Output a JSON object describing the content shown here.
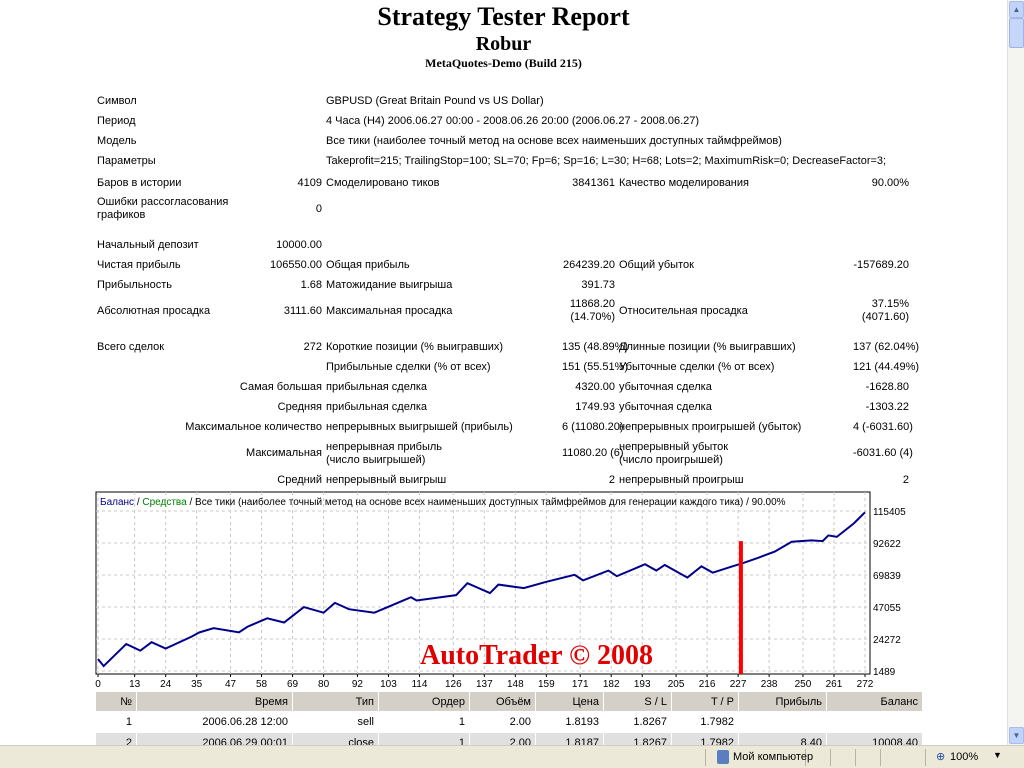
{
  "header": {
    "title": "Strategy Tester Report",
    "expert": "Robur",
    "server": "MetaQuotes-Demo (Build 215)"
  },
  "info": {
    "symbol_label": "Символ",
    "symbol": "GBPUSD (Great Britain Pound vs US Dollar)",
    "period_label": "Период",
    "period": "4 Часа (H4) 2006.06.27 00:00 - 2008.06.26 20:00 (2006.06.27 - 2008.06.27)",
    "model_label": "Модель",
    "model": "Все тики (наиболее точный метод на основе всех наименьших доступных таймфреймов)",
    "params_label": "Параметры",
    "params": "Takeprofit=215; TrailingStop=100; SL=70; Fp=6; Sp=16; L=30; H=68; Lots=2; MaximumRisk=0; DecreaseFactor=3;",
    "bars_label": "Баров в истории",
    "bars": "4109",
    "ticks_label": "Смоделировано тиков",
    "ticks": "3841361",
    "quality_label": "Качество моделирования",
    "quality": "90.00%",
    "errors_label": "Ошибки рассогласования графиков",
    "errors": "0"
  },
  "stats": {
    "deposit_label": "Начальный депозит",
    "deposit": "10000.00",
    "net_label": "Чистая прибыль",
    "net": "106550.00",
    "gross_profit_label": "Общая прибыль",
    "gross_profit": "264239.20",
    "gross_loss_label": "Общий убыток",
    "gross_loss": "-157689.20",
    "pf_label": "Прибыльность",
    "pf": "1.68",
    "expected_label": "Матожидание выигрыша",
    "expected": "391.73",
    "abs_dd_label": "Абсолютная просадка",
    "abs_dd": "3111.60",
    "max_dd_label": "Максимальная просадка",
    "max_dd": "11868.20",
    "max_dd_pct": "(14.70%)",
    "rel_dd_label": "Относительная просадка",
    "rel_dd": "37.15%",
    "rel_dd_val": "(4071.60)",
    "total_label": "Всего сделок",
    "total": "272",
    "short_label": "Короткие позиции (% выигравших)",
    "short": "135 (48.89%)",
    "long_label": "Длинные позиции (% выигравших)",
    "long": "137 (62.04%)",
    "win_label": "Прибыльные сделки (% от всех)",
    "win": "151 (55.51%)",
    "loss_label": "Убыточные сделки (% от всех)",
    "loss": "121 (44.49%)",
    "largest_label": "Самая большая",
    "largest_win_label": "прибыльная сделка",
    "largest_win": "4320.00",
    "largest_loss_label": "убыточная сделка",
    "largest_loss": "-1628.80",
    "avg_label": "Средняя",
    "avg_win_label": "прибыльная сделка",
    "avg_win": "1749.93",
    "avg_loss_label": "убыточная сделка",
    "avg_loss": "-1303.22",
    "maxcount_label": "Максимальное количество",
    "maxcons_win_label": "непрерывных выигрышей (прибыль)",
    "maxcons_win": "6 (11080.20)",
    "maxcons_loss_label": "непрерывных проигрышей (убыток)",
    "maxcons_loss": "4 (-6031.60)",
    "max_label": "Максимальная",
    "maxprofit_label": "непрерывная прибыль (число выигрышей)",
    "maxprofit": "11080.20 (6)",
    "maxloss_label": "непрерывный убыток (число проигрышей)",
    "maxloss": "-6031.60 (4)",
    "avgcons_label": "Средний",
    "avgcons_win_label": "непрерывный выигрыш",
    "avgcons_win": "2",
    "avgcons_loss_label": "непрерывный проигрыш",
    "avgcons_loss": "2"
  },
  "chart_data": {
    "type": "line",
    "legend": {
      "balance": "Баланс",
      "sep1": " / ",
      "equity": "Средства",
      "rest": " / Все тики (наиболее точный метод на основе всех наименьших доступных таймфреймов для генерации каждого тика) / 90.00%"
    },
    "colors": {
      "balance": "#00008b",
      "equity": "#008000",
      "marker": "#ff0000",
      "grid": "#c8c8c8"
    },
    "x_ticks": [
      0,
      13,
      24,
      35,
      47,
      58,
      69,
      80,
      92,
      103,
      114,
      126,
      137,
      148,
      159,
      171,
      182,
      193,
      205,
      216,
      227,
      238,
      250,
      261,
      272
    ],
    "y_ticks": [
      1489,
      24272,
      47055,
      69839,
      92622,
      115405
    ],
    "xlim": [
      0,
      272
    ],
    "ylim": [
      1489,
      115405
    ],
    "grid": true,
    "series": [
      {
        "name": "Баланс",
        "x": [
          0,
          2,
          10,
          15,
          19,
          24,
          33,
          36,
          41,
          50,
          53,
          60,
          66,
          73,
          80,
          84,
          89,
          98,
          111,
          113,
          127,
          131,
          139,
          142,
          151,
          159,
          169,
          172,
          181,
          184,
          194,
          198,
          201,
          209,
          214,
          218,
          225,
          229,
          234,
          240,
          246,
          253,
          257,
          259,
          262,
          268,
          272
        ],
        "y": [
          10000,
          5000,
          20700,
          16000,
          22000,
          17500,
          25800,
          29000,
          32000,
          29000,
          33000,
          39000,
          36000,
          47000,
          43000,
          50000,
          45500,
          43000,
          54000,
          51700,
          55500,
          64000,
          57000,
          63000,
          60500,
          65000,
          70000,
          66000,
          73000,
          69000,
          77500,
          73000,
          77000,
          68000,
          76000,
          71500,
          76000,
          78500,
          82000,
          86500,
          93500,
          94500,
          94000,
          98000,
          97000,
          106500,
          114500
        ]
      }
    ],
    "marker": {
      "x": 228,
      "y": 94000
    },
    "watermark": "AutoTrader © 2008"
  },
  "trades": {
    "columns": [
      "№",
      "Время",
      "Тип",
      "Ордер",
      "Объём",
      "Цена",
      "S / L",
      "T / P",
      "Прибыль",
      "Баланс"
    ],
    "rows": [
      [
        "1",
        "2006.06.28 12:00",
        "sell",
        "1",
        "2.00",
        "1.8193",
        "1.8267",
        "1.7982",
        "",
        ""
      ],
      [
        "2",
        "2006.06.29 00:01",
        "close",
        "1",
        "2.00",
        "1.8187",
        "1.8267",
        "1.7982",
        "8.40",
        "10008.40"
      ]
    ]
  },
  "statusbar": {
    "zone": "Мой компьютер",
    "zoom": "100%"
  }
}
